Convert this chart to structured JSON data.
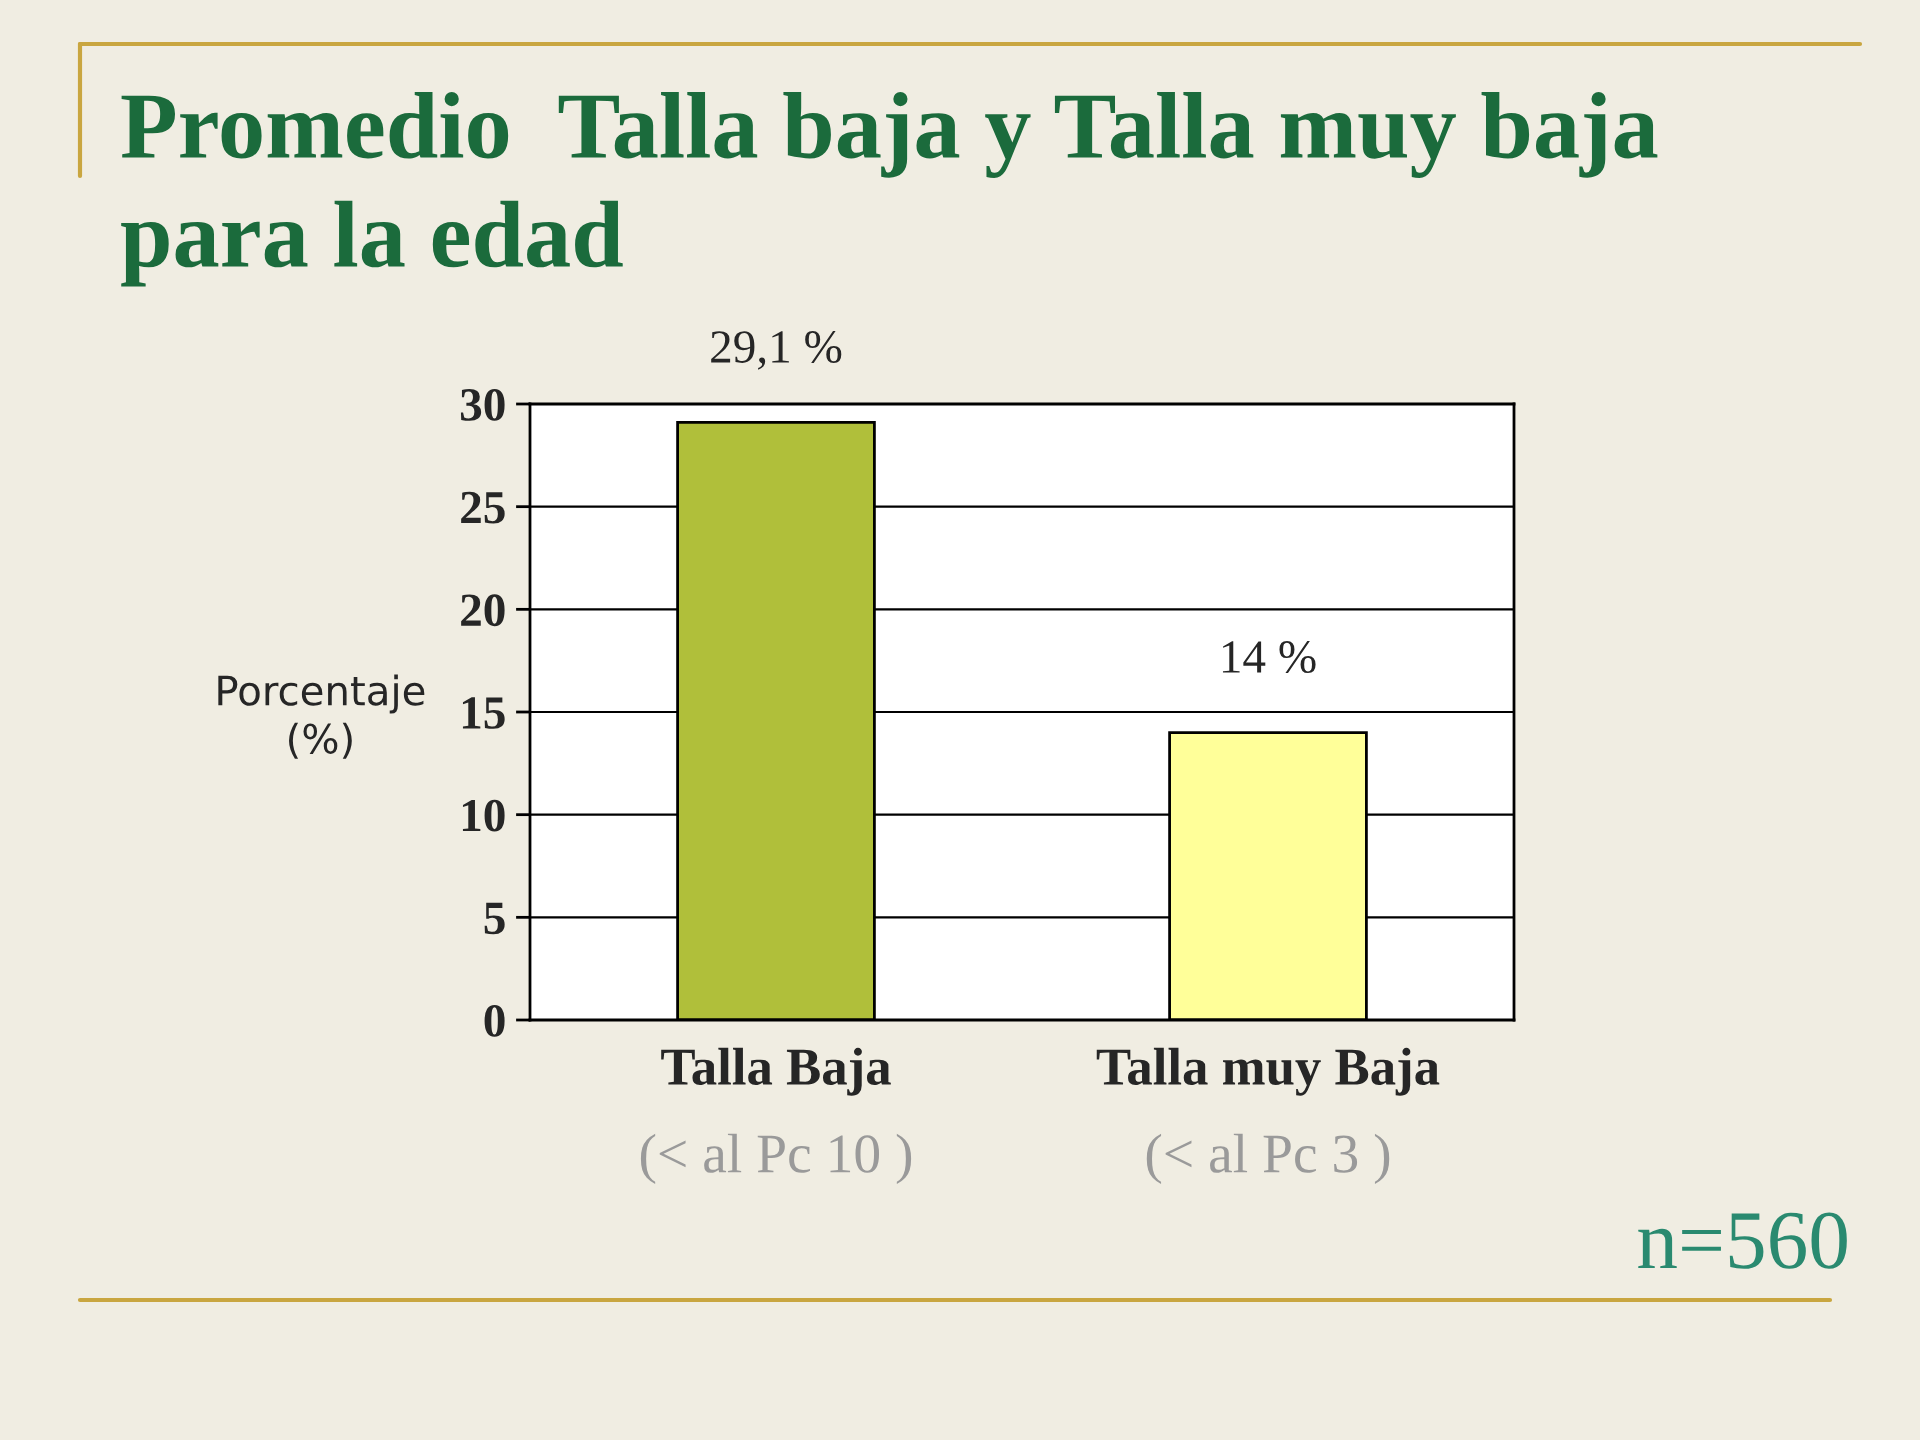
{
  "chart_data": {
    "type": "bar",
    "title": "Promedio  Talla baja y Talla muy baja\npara la edad",
    "ylabel": "Porcentaje\n(%)",
    "categories": [
      "Talla Baja",
      "Talla muy Baja"
    ],
    "values": [
      29.1,
      14
    ],
    "colors": [
      "#b0bf3a",
      "#ffff99"
    ],
    "value_labels": [
      "29,1 %",
      "14 %"
    ],
    "ylim": [
      0,
      30
    ],
    "yticks": [
      0,
      5,
      10,
      15,
      20,
      25,
      30
    ],
    "grid": "y",
    "annotations": [
      "(< al Pc 10 )",
      "(< al Pc 3 )",
      "n=560"
    ]
  }
}
